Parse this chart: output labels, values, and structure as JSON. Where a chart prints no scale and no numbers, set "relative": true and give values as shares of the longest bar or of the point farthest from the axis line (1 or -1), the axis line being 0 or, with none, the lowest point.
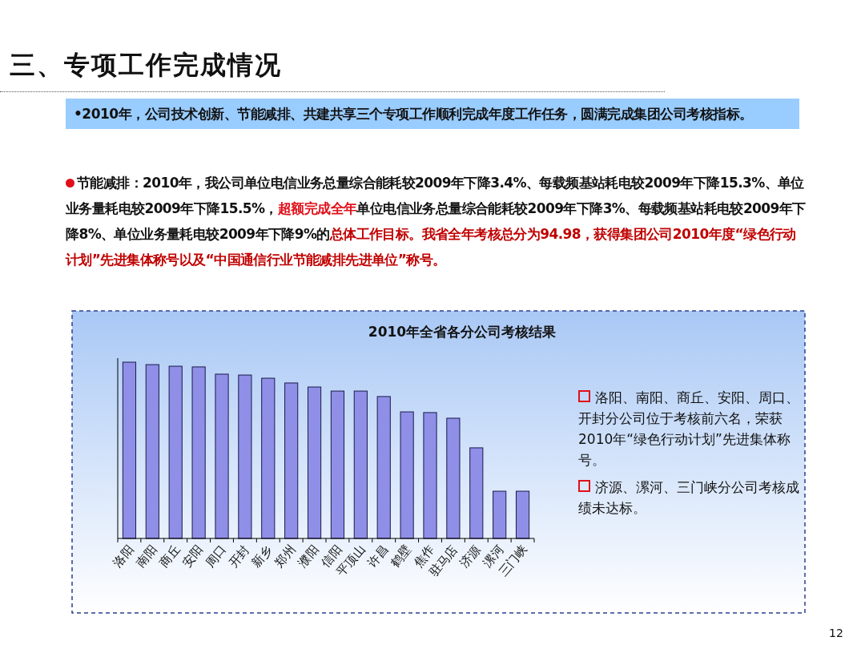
{
  "chart_data": {
    "type": "bar",
    "relative": true,
    "title": "2010年全省各分公司考核结果",
    "subtitle": "三、专项工作完成情况",
    "categories": [
      "洛阳",
      "南阳",
      "商丘",
      "安阳",
      "周口",
      "开封",
      "新乡",
      "郑州",
      "濮阳",
      "信阳",
      "平顶山",
      "许昌",
      "鹤壁",
      "焦作",
      "驻马店",
      "济源",
      "漯河",
      "三门峡"
    ],
    "values": [
      1,
      0.986,
      0.977,
      0.973,
      0.932,
      0.927,
      0.909,
      0.882,
      0.859,
      0.836,
      0.836,
      0.805,
      0.718,
      0.714,
      0.682,
      0.514,
      0.268,
      0.268
    ],
    "color": "#8f8fe8",
    "annotations": [
      "•2010年，公司技术创新、节能减排、共建共享三个专项工作顺利完成年度工作任务，圆满完成集团公司考核指标。",
      "节能减排：2010年，我公司单位电信业务总量综合能耗较2009年下降3.4%、每载频基站耗电较2009年下降15.3%、单位业务量耗电较2009年下降15.5%，",
      "超额完成全年",
      "单位电信业务总量综合能耗较2009年下降3%、每载频基站耗电较2009年下降8%、单位业务量耗电较2009年下降9%的",
      "总体工作目标。我省全年考核总分为94.98，获得集团公司2010年度“绿色行动计划”先进集体称号以及“中国通信行业节能减排先进单位”称号。",
      "洛阳、南阳、商丘、安阳、周口、开封分公司位于考核前六名，荣获2010年“绿色行动计划”先进集体称号。",
      "济源、漯河、三门峡分公司考核成绩未达标。",
      "12"
    ]
  }
}
